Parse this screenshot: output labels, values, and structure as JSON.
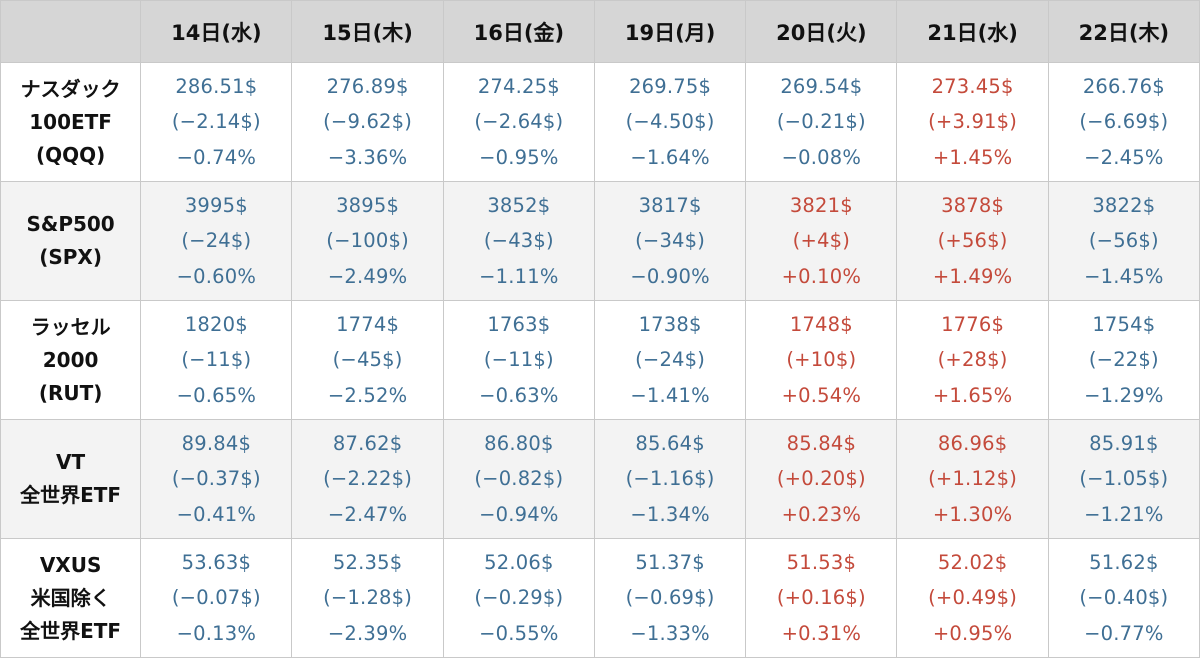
{
  "header": {
    "corner": "",
    "days": [
      "14日(水)",
      "15日(木)",
      "16日(金)",
      "19日(月)",
      "20日(火)",
      "21日(水)",
      "22日(木)"
    ]
  },
  "colors": {
    "up": "#c44a3b",
    "down": "#3f6f94",
    "header_bg": "#d6d6d6",
    "alt_row_bg": "#f3f3f3"
  },
  "rows": [
    {
      "label": [
        "ナスダック",
        "100ETF",
        "(QQQ)"
      ],
      "cells": [
        {
          "price": "286.51$",
          "change": "(−2.14$)",
          "pct": "−0.74%",
          "dir": "down"
        },
        {
          "price": "276.89$",
          "change": "(−9.62$)",
          "pct": "−3.36%",
          "dir": "down"
        },
        {
          "price": "274.25$",
          "change": "(−2.64$)",
          "pct": "−0.95%",
          "dir": "down"
        },
        {
          "price": "269.75$",
          "change": "(−4.50$)",
          "pct": "−1.64%",
          "dir": "down"
        },
        {
          "price": "269.54$",
          "change": "(−0.21$)",
          "pct": "−0.08%",
          "dir": "down"
        },
        {
          "price": "273.45$",
          "change": "(+3.91$)",
          "pct": "+1.45%",
          "dir": "up"
        },
        {
          "price": "266.76$",
          "change": "(−6.69$)",
          "pct": "−2.45%",
          "dir": "down"
        }
      ]
    },
    {
      "label": [
        "S&P500",
        "(SPX)"
      ],
      "cells": [
        {
          "price": "3995$",
          "change": "(−24$)",
          "pct": "−0.60%",
          "dir": "down"
        },
        {
          "price": "3895$",
          "change": "(−100$)",
          "pct": "−2.49%",
          "dir": "down"
        },
        {
          "price": "3852$",
          "change": "(−43$)",
          "pct": "−1.11%",
          "dir": "down"
        },
        {
          "price": "3817$",
          "change": "(−34$)",
          "pct": "−0.90%",
          "dir": "down"
        },
        {
          "price": "3821$",
          "change": "(+4$)",
          "pct": "+0.10%",
          "dir": "up"
        },
        {
          "price": "3878$",
          "change": "(+56$)",
          "pct": "+1.49%",
          "dir": "up"
        },
        {
          "price": "3822$",
          "change": "(−56$)",
          "pct": "−1.45%",
          "dir": "down"
        }
      ]
    },
    {
      "label": [
        "ラッセル",
        "2000",
        "(RUT)"
      ],
      "cells": [
        {
          "price": "1820$",
          "change": "(−11$)",
          "pct": "−0.65%",
          "dir": "down"
        },
        {
          "price": "1774$",
          "change": "(−45$)",
          "pct": "−2.52%",
          "dir": "down"
        },
        {
          "price": "1763$",
          "change": "(−11$)",
          "pct": "−0.63%",
          "dir": "down"
        },
        {
          "price": "1738$",
          "change": "(−24$)",
          "pct": "−1.41%",
          "dir": "down"
        },
        {
          "price": "1748$",
          "change": "(+10$)",
          "pct": "+0.54%",
          "dir": "up"
        },
        {
          "price": "1776$",
          "change": "(+28$)",
          "pct": "+1.65%",
          "dir": "up"
        },
        {
          "price": "1754$",
          "change": "(−22$)",
          "pct": "−1.29%",
          "dir": "down"
        }
      ]
    },
    {
      "label": [
        "VT",
        "全世界ETF"
      ],
      "cells": [
        {
          "price": "89.84$",
          "change": "(−0.37$)",
          "pct": "−0.41%",
          "dir": "down"
        },
        {
          "price": "87.62$",
          "change": "(−2.22$)",
          "pct": "−2.47%",
          "dir": "down"
        },
        {
          "price": "86.80$",
          "change": "(−0.82$)",
          "pct": "−0.94%",
          "dir": "down"
        },
        {
          "price": "85.64$",
          "change": "(−1.16$)",
          "pct": "−1.34%",
          "dir": "down"
        },
        {
          "price": "85.84$",
          "change": "(+0.20$)",
          "pct": "+0.23%",
          "dir": "up"
        },
        {
          "price": "86.96$",
          "change": "(+1.12$)",
          "pct": "+1.30%",
          "dir": "up"
        },
        {
          "price": "85.91$",
          "change": "(−1.05$)",
          "pct": "−1.21%",
          "dir": "down"
        }
      ]
    },
    {
      "label": [
        "VXUS",
        "米国除く",
        "全世界ETF"
      ],
      "cells": [
        {
          "price": "53.63$",
          "change": "(−0.07$)",
          "pct": "−0.13%",
          "dir": "down"
        },
        {
          "price": "52.35$",
          "change": "(−1.28$)",
          "pct": "−2.39%",
          "dir": "down"
        },
        {
          "price": "52.06$",
          "change": "(−0.29$)",
          "pct": "−0.55%",
          "dir": "down"
        },
        {
          "price": "51.37$",
          "change": "(−0.69$)",
          "pct": "−1.33%",
          "dir": "down"
        },
        {
          "price": "51.53$",
          "change": "(+0.16$)",
          "pct": "+0.31%",
          "dir": "up"
        },
        {
          "price": "52.02$",
          "change": "(+0.49$)",
          "pct": "+0.95%",
          "dir": "up"
        },
        {
          "price": "51.62$",
          "change": "(−0.40$)",
          "pct": "−0.77%",
          "dir": "down"
        }
      ]
    }
  ]
}
